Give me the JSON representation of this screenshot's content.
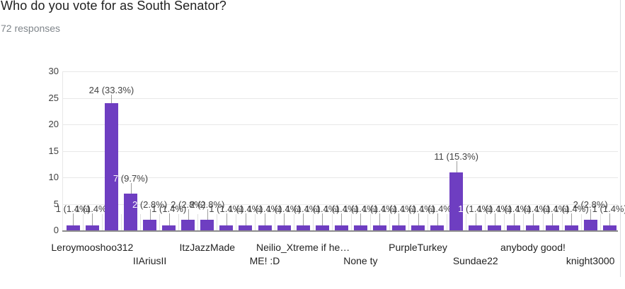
{
  "header": {
    "title": "Who do you vote for as South Senator?",
    "responses_label": "72 responses"
  },
  "colors": {
    "bar": "#6e3ec1",
    "title_text": "#212121",
    "responses_text": "#80868b",
    "annotation_text": "#434343",
    "axis_text": "#404040"
  },
  "chart_data": {
    "type": "bar",
    "title": "Who do you vote for as South Senator?",
    "total_responses": 72,
    "xlabel": "",
    "ylabel": "",
    "ylim": [
      0,
      30
    ],
    "yticks": [
      0,
      5,
      10,
      15,
      20,
      25,
      30
    ],
    "grid": true,
    "legend_position": "none",
    "bars": [
      {
        "value": 1,
        "annotation": "1 (1.4%)",
        "xlabel": "",
        "xlabel_row": 0,
        "white_lead": false
      },
      {
        "value": 1,
        "annotation": "1 (1.4%)",
        "xlabel": "Leroymooshoo312",
        "xlabel_row": 1,
        "white_lead": false
      },
      {
        "value": 24,
        "annotation": "24 (33.3%)",
        "xlabel": "",
        "xlabel_row": 0,
        "white_lead": false
      },
      {
        "value": 7,
        "annotation": "7 (9.7%)",
        "xlabel": "",
        "xlabel_row": 0,
        "white_lead": true
      },
      {
        "value": 2,
        "annotation": "2 (2.8%)",
        "xlabel": "IIAriusII",
        "xlabel_row": 2,
        "white_lead": true
      },
      {
        "value": 1,
        "annotation": "1 (1.4%)",
        "xlabel": "",
        "xlabel_row": 0,
        "white_lead": false
      },
      {
        "value": 2,
        "annotation": "2 (2.8%)",
        "xlabel": "",
        "xlabel_row": 0,
        "white_lead": false
      },
      {
        "value": 2,
        "annotation": "2 (2.8%)",
        "xlabel": "ItzJazzMade",
        "xlabel_row": 1,
        "white_lead": false
      },
      {
        "value": 1,
        "annotation": "1 (1.4%)",
        "xlabel": "",
        "xlabel_row": 0,
        "white_lead": false
      },
      {
        "value": 1,
        "annotation": "1 (1.4%)",
        "xlabel": "",
        "xlabel_row": 0,
        "white_lead": false
      },
      {
        "value": 1,
        "annotation": "1 (1.4%)",
        "xlabel": "ME! :D",
        "xlabel_row": 2,
        "white_lead": false
      },
      {
        "value": 1,
        "annotation": "1 (1.4%)",
        "xlabel": "",
        "xlabel_row": 0,
        "white_lead": false
      },
      {
        "value": 1,
        "annotation": "1 (1.4%)",
        "xlabel": "Neilio_Xtreme if he…",
        "xlabel_row": 1,
        "white_lead": false
      },
      {
        "value": 1,
        "annotation": "1 (1.4%)",
        "xlabel": "",
        "xlabel_row": 0,
        "white_lead": false
      },
      {
        "value": 1,
        "annotation": "1 (1.4%)",
        "xlabel": "",
        "xlabel_row": 0,
        "white_lead": false
      },
      {
        "value": 1,
        "annotation": "1 (1.4%)",
        "xlabel": "None ty",
        "xlabel_row": 2,
        "white_lead": false
      },
      {
        "value": 1,
        "annotation": "1 (1.4%)",
        "xlabel": "",
        "xlabel_row": 0,
        "white_lead": false
      },
      {
        "value": 1,
        "annotation": "1 (1.4%)",
        "xlabel": "",
        "xlabel_row": 0,
        "white_lead": false
      },
      {
        "value": 1,
        "annotation": "1 (1.4%)",
        "xlabel": "PurpleTurkey",
        "xlabel_row": 1,
        "white_lead": false
      },
      {
        "value": 1,
        "annotation": "1 (1.4%)",
        "xlabel": "",
        "xlabel_row": 0,
        "white_lead": false
      },
      {
        "value": 11,
        "annotation": "11 (15.3%)",
        "xlabel": "",
        "xlabel_row": 0,
        "white_lead": false
      },
      {
        "value": 1,
        "annotation": "1 (1.4%)",
        "xlabel": "Sundae22",
        "xlabel_row": 2,
        "white_lead": true
      },
      {
        "value": 1,
        "annotation": "1 (1.4%)",
        "xlabel": "",
        "xlabel_row": 0,
        "white_lead": false
      },
      {
        "value": 1,
        "annotation": "1 (1.4%)",
        "xlabel": "",
        "xlabel_row": 0,
        "white_lead": false
      },
      {
        "value": 1,
        "annotation": "1 (1.4%)",
        "xlabel": "anybody good!",
        "xlabel_row": 1,
        "white_lead": false
      },
      {
        "value": 1,
        "annotation": "1 (1.4%)",
        "xlabel": "",
        "xlabel_row": 0,
        "white_lead": false
      },
      {
        "value": 1,
        "annotation": "1 (1.4%)",
        "xlabel": "",
        "xlabel_row": 0,
        "white_lead": false
      },
      {
        "value": 2,
        "annotation": "2 (2.8%)",
        "xlabel": "knight3000",
        "xlabel_row": 2,
        "white_lead": false
      },
      {
        "value": 1,
        "annotation": "1 (1.4%)",
        "xlabel": "",
        "xlabel_row": 0,
        "white_lead": false
      }
    ]
  }
}
